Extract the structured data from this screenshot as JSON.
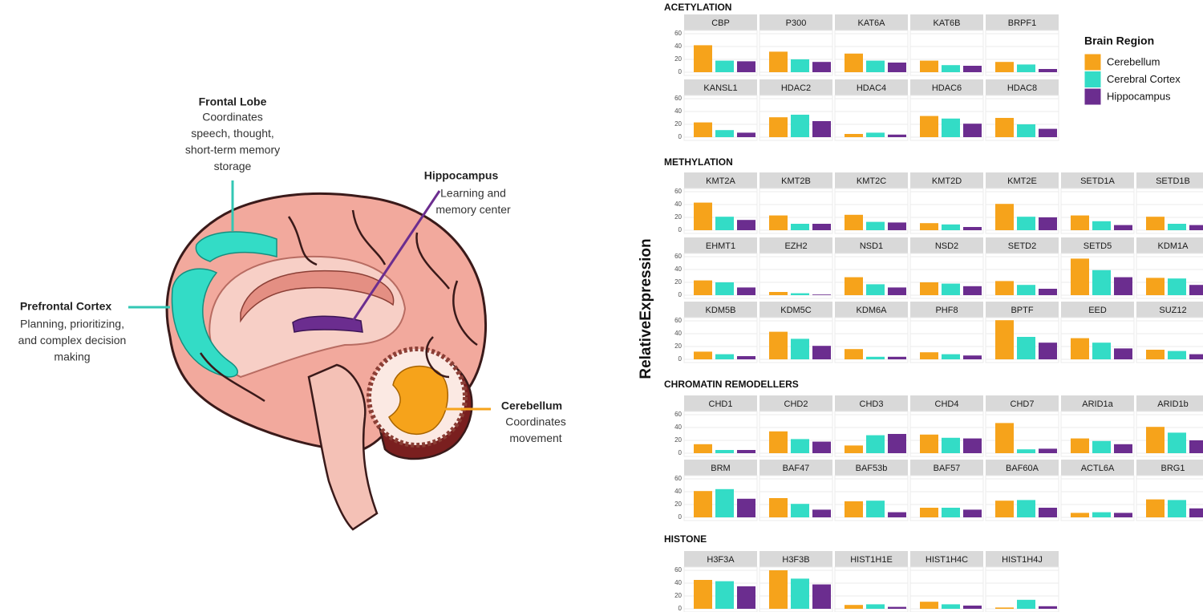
{
  "illustration": {
    "frontal_lobe": {
      "title": "Frontal Lobe",
      "lines": [
        "Coordinates",
        "speech, thought,",
        "short-term memory",
        "storage"
      ]
    },
    "prefrontal_cortex": {
      "title": "Prefrontal Cortex",
      "lines": [
        "Planning, prioritizing,",
        "and complex decision",
        "making"
      ]
    },
    "hippocampus": {
      "title": "Hippocampus",
      "lines": [
        "Learning and",
        "memory center"
      ]
    },
    "cerebellum": {
      "title": "Cerebellum",
      "lines": [
        "Coordinates",
        "movement"
      ]
    }
  },
  "chart_data": {
    "type": "bar",
    "y_label": "RelativeExpression",
    "legend_title": "Brain Region",
    "ylim": [
      -5,
      65
    ],
    "yticks": [
      0,
      20,
      40,
      60
    ],
    "grid": true,
    "series": [
      {
        "name": "Cerebellum",
        "color": "#f6a31b"
      },
      {
        "name": "Cerebral Cortex",
        "color": "#33dcc6"
      },
      {
        "name": "Hippocampus",
        "color": "#6b2d8f"
      }
    ],
    "groups": [
      {
        "title": "ACETYLATION",
        "panels": [
          {
            "title": "CBP",
            "values": [
              42,
              18,
              17
            ]
          },
          {
            "title": "P300",
            "values": [
              32,
              20,
              16
            ]
          },
          {
            "title": "KAT6A",
            "values": [
              29,
              18,
              15
            ]
          },
          {
            "title": "KAT6B",
            "values": [
              18,
              11,
              10
            ]
          },
          {
            "title": "BRPF1",
            "values": [
              16,
              12,
              5
            ]
          },
          {
            "title": "KANSL1",
            "values": [
              23,
              11,
              7
            ]
          },
          {
            "title": "HDAC2",
            "values": [
              31,
              35,
              25
            ]
          },
          {
            "title": "HDAC4",
            "values": [
              5,
              7,
              4
            ]
          },
          {
            "title": "HDAC6",
            "values": [
              33,
              29,
              21
            ]
          },
          {
            "title": "HDAC8",
            "values": [
              30,
              20,
              13
            ]
          }
        ]
      },
      {
        "title": "METHYLATION",
        "panels": [
          {
            "title": "KMT2A",
            "values": [
              43,
              21,
              16
            ]
          },
          {
            "title": "KMT2B",
            "values": [
              23,
              10,
              10
            ]
          },
          {
            "title": "KMT2C",
            "values": [
              24,
              13,
              12
            ]
          },
          {
            "title": "KMT2D",
            "values": [
              11,
              9,
              5
            ]
          },
          {
            "title": "KMT2E",
            "values": [
              41,
              21,
              20
            ]
          },
          {
            "title": "SETD1A",
            "values": [
              23,
              14,
              8
            ]
          },
          {
            "title": "SETD1B",
            "values": [
              21,
              10,
              8
            ]
          },
          {
            "title": "EHMT1",
            "values": [
              23,
              20,
              12
            ]
          },
          {
            "title": "EZH2",
            "values": [
              5,
              3,
              1
            ]
          },
          {
            "title": "NSD1",
            "values": [
              28,
              17,
              12
            ]
          },
          {
            "title": "NSD2",
            "values": [
              20,
              18,
              14
            ]
          },
          {
            "title": "SETD2",
            "values": [
              22,
              16,
              10
            ]
          },
          {
            "title": "SETD5",
            "values": [
              57,
              39,
              28
            ]
          },
          {
            "title": "KDM1A",
            "values": [
              27,
              26,
              16
            ]
          },
          {
            "title": "KDM5B",
            "values": [
              12,
              8,
              5
            ]
          },
          {
            "title": "KDM5C",
            "values": [
              43,
              32,
              21
            ]
          },
          {
            "title": "KDM6A",
            "values": [
              16,
              4,
              4
            ]
          },
          {
            "title": "PHF8",
            "values": [
              11,
              8,
              6
            ]
          },
          {
            "title": "BPTF",
            "values": [
              61,
              35,
              26
            ]
          },
          {
            "title": "EED",
            "values": [
              33,
              26,
              17
            ]
          },
          {
            "title": "SUZ12",
            "values": [
              15,
              13,
              8
            ]
          }
        ]
      },
      {
        "title": "CHROMATIN REMODELLERS",
        "panels": [
          {
            "title": "CHD1",
            "values": [
              14,
              5,
              5
            ]
          },
          {
            "title": "CHD2",
            "values": [
              34,
              22,
              18
            ]
          },
          {
            "title": "CHD3",
            "values": [
              12,
              28,
              30
            ]
          },
          {
            "title": "CHD4",
            "values": [
              29,
              24,
              23
            ]
          },
          {
            "title": "CHD7",
            "values": [
              47,
              6,
              7
            ]
          },
          {
            "title": "ARID1a",
            "values": [
              23,
              19,
              14
            ]
          },
          {
            "title": "ARID1b",
            "values": [
              41,
              32,
              20
            ]
          },
          {
            "title": "BRM",
            "values": [
              41,
              44,
              29
            ]
          },
          {
            "title": "BAF47",
            "values": [
              30,
              21,
              12
            ]
          },
          {
            "title": "BAF53b",
            "values": [
              25,
              26,
              8
            ]
          },
          {
            "title": "BAF57",
            "values": [
              15,
              15,
              12
            ]
          },
          {
            "title": "BAF60A",
            "values": [
              26,
              27,
              15
            ]
          },
          {
            "title": "ACTL6A",
            "values": [
              7,
              8,
              7
            ]
          },
          {
            "title": "BRG1",
            "values": [
              28,
              27,
              14
            ]
          }
        ]
      },
      {
        "title": "HISTONE",
        "panels": [
          {
            "title": "H3F3A",
            "values": [
              45,
              43,
              35
            ]
          },
          {
            "title": "H3F3B",
            "values": [
              60,
              47,
              38
            ]
          },
          {
            "title": "HIST1H1E",
            "values": [
              6,
              7,
              3
            ]
          },
          {
            "title": "HIST1H4C",
            "values": [
              11,
              7,
              5
            ]
          },
          {
            "title": "HIST1H4J",
            "values": [
              2,
              14,
              4
            ]
          }
        ]
      }
    ]
  }
}
